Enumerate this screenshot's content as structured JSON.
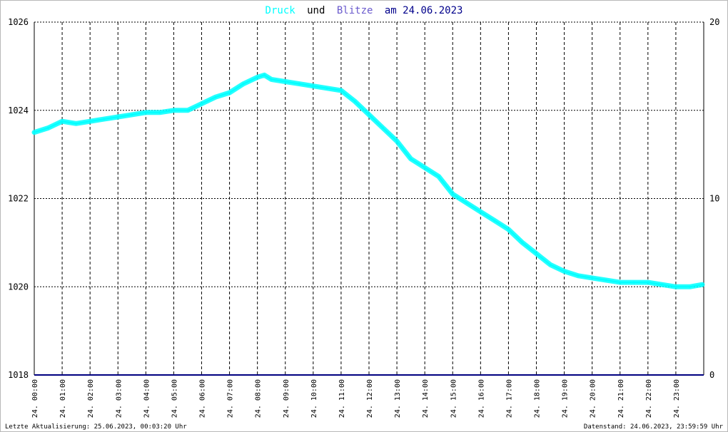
{
  "title": {
    "word_druck": "Druck",
    "word_und": "und",
    "word_blitze": "Blitze",
    "date_text": "am 24.06.2023"
  },
  "footer": {
    "left": "Letzte Aktualisierung: 25.06.2023, 00:03:20 Uhr",
    "right": "Datenstand: 24.06.2023, 23:59:59 Uhr"
  },
  "colors": {
    "druck": "#00ffff",
    "blitze": "#6a5acd",
    "date": "#00008b",
    "lightning_line": "#000080",
    "grid": "#000000",
    "frame": "#b8b8b8"
  },
  "chart_data": {
    "type": "line",
    "title": "Druck und Blitze am 24.06.2023",
    "xlabel": "",
    "ylabel": "",
    "xlim": [
      0,
      24
    ],
    "ylim": [
      1018,
      1026
    ],
    "y2lim": [
      0,
      20
    ],
    "grid": true,
    "y_ticks": [
      1018,
      1020,
      1022,
      1024,
      1026
    ],
    "y2_ticks": [
      0,
      10,
      20
    ],
    "x_ticks": [
      "24. 00:00",
      "24. 01:00",
      "24. 02:00",
      "24. 03:00",
      "24. 04:00",
      "24. 05:00",
      "24. 06:00",
      "24. 07:00",
      "24. 08:00",
      "24. 09:00",
      "24. 10:00",
      "24. 11:00",
      "24. 12:00",
      "24. 13:00",
      "24. 14:00",
      "24. 15:00",
      "24. 16:00",
      "24. 17:00",
      "24. 18:00",
      "24. 19:00",
      "24. 20:00",
      "24. 21:00",
      "24. 22:00",
      "24. 23:00"
    ],
    "series": [
      {
        "name": "Druck",
        "axis": "left",
        "x": [
          0,
          0.5,
          1,
          1.5,
          2,
          2.5,
          3,
          3.5,
          4,
          4.5,
          5,
          5.5,
          6,
          6.5,
          7,
          7.5,
          8,
          8.25,
          8.5,
          9,
          9.5,
          10,
          10.5,
          11,
          11.5,
          12,
          12.5,
          13,
          13.5,
          14,
          14.5,
          15,
          15.5,
          16,
          16.5,
          17,
          17.5,
          18,
          18.5,
          19,
          19.5,
          20,
          20.5,
          21,
          21.5,
          22,
          22.5,
          23,
          23.5,
          23.95
        ],
        "values": [
          1023.5,
          1023.6,
          1023.75,
          1023.7,
          1023.75,
          1023.8,
          1023.85,
          1023.9,
          1023.95,
          1023.95,
          1024.0,
          1024.0,
          1024.15,
          1024.3,
          1024.4,
          1024.6,
          1024.75,
          1024.8,
          1024.7,
          1024.65,
          1024.6,
          1024.55,
          1024.5,
          1024.45,
          1024.2,
          1023.9,
          1023.6,
          1023.3,
          1022.9,
          1022.7,
          1022.5,
          1022.1,
          1021.9,
          1021.7,
          1021.5,
          1021.3,
          1021.0,
          1020.75,
          1020.5,
          1020.35,
          1020.25,
          1020.2,
          1020.15,
          1020.1,
          1020.1,
          1020.1,
          1020.05,
          1020.0,
          1020.0,
          1020.05
        ]
      },
      {
        "name": "Blitze",
        "axis": "right",
        "x": [
          0,
          24
        ],
        "values": [
          0,
          0
        ]
      }
    ]
  }
}
